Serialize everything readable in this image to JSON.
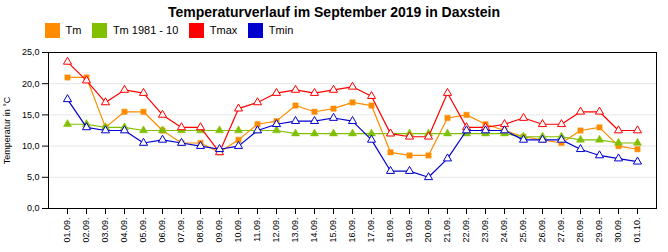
{
  "chart_data": {
    "type": "line",
    "title": "Temperaturverlauf im September 2019 in Daxstein",
    "ylabel": "Temperatur in °C",
    "categories": [
      "01.09.",
      "02.09.",
      "03.09.",
      "04.09.",
      "05.09.",
      "06.09.",
      "07.09.",
      "08.09.",
      "09.09.",
      "10.09.",
      "11.09.",
      "12.09.",
      "13.09.",
      "14.09.",
      "15.09.",
      "16.09.",
      "17.09.",
      "18.09.",
      "19.09.",
      "20.09.",
      "21.09.",
      "22.09.",
      "23.09.",
      "24.09.",
      "25.09.",
      "26.09.",
      "27.09.",
      "28.09.",
      "29.09.",
      "30.09.",
      "01.10."
    ],
    "series": [
      {
        "name": "Tm",
        "color": "#ff8c00",
        "marker": "square",
        "values": [
          21.0,
          21.0,
          13.0,
          15.5,
          15.5,
          12.5,
          10.5,
          10.5,
          9.0,
          11.0,
          13.5,
          14.0,
          16.5,
          15.5,
          16.0,
          17.0,
          16.5,
          9.0,
          8.5,
          8.5,
          14.5,
          15.0,
          13.5,
          12.5,
          11.5,
          11.0,
          10.5,
          12.5,
          13.0,
          10.0,
          9.5
        ]
      },
      {
        "name": "Tm 1981 - 10",
        "color": "#80c000",
        "marker": "triangle",
        "values": [
          13.5,
          13.5,
          13.0,
          13.0,
          12.5,
          12.5,
          12.5,
          12.5,
          12.5,
          12.5,
          12.5,
          12.5,
          12.0,
          12.0,
          12.0,
          12.0,
          12.0,
          12.0,
          12.0,
          12.0,
          12.0,
          12.0,
          12.0,
          12.0,
          11.5,
          11.5,
          11.5,
          11.0,
          11.0,
          10.5,
          10.5
        ]
      },
      {
        "name": "Tmax",
        "color": "#ff0000",
        "marker": "triangle-open",
        "values": [
          23.5,
          20.5,
          17.0,
          19.0,
          18.5,
          15.0,
          13.0,
          13.0,
          9.0,
          16.0,
          17.0,
          18.5,
          19.0,
          18.5,
          19.0,
          19.5,
          18.0,
          12.0,
          11.5,
          11.5,
          18.5,
          13.0,
          13.0,
          13.5,
          14.5,
          13.5,
          13.5,
          15.5,
          15.5,
          12.5,
          12.5
        ]
      },
      {
        "name": "Tmin",
        "color": "#0000cd",
        "marker": "triangle-open",
        "values": [
          17.5,
          13.0,
          12.5,
          12.5,
          10.5,
          11.0,
          10.5,
          10.0,
          9.5,
          10.0,
          12.5,
          13.5,
          14.0,
          14.0,
          14.5,
          14.0,
          11.0,
          6.0,
          6.0,
          5.0,
          8.0,
          12.5,
          12.5,
          12.5,
          11.0,
          11.0,
          11.0,
          9.5,
          8.5,
          8.0,
          7.5
        ]
      }
    ],
    "ylim": [
      0.0,
      25.0
    ],
    "yticks": [
      {
        "value": 0.0,
        "label": "0,0"
      },
      {
        "value": 5.0,
        "label": "5,0"
      },
      {
        "value": 10.0,
        "label": "10,0"
      },
      {
        "value": 15.0,
        "label": "15,0"
      },
      {
        "value": 20.0,
        "label": "20,0"
      },
      {
        "value": 25.0,
        "label": "25,0"
      }
    ],
    "grid": true,
    "legend": "upper left"
  }
}
